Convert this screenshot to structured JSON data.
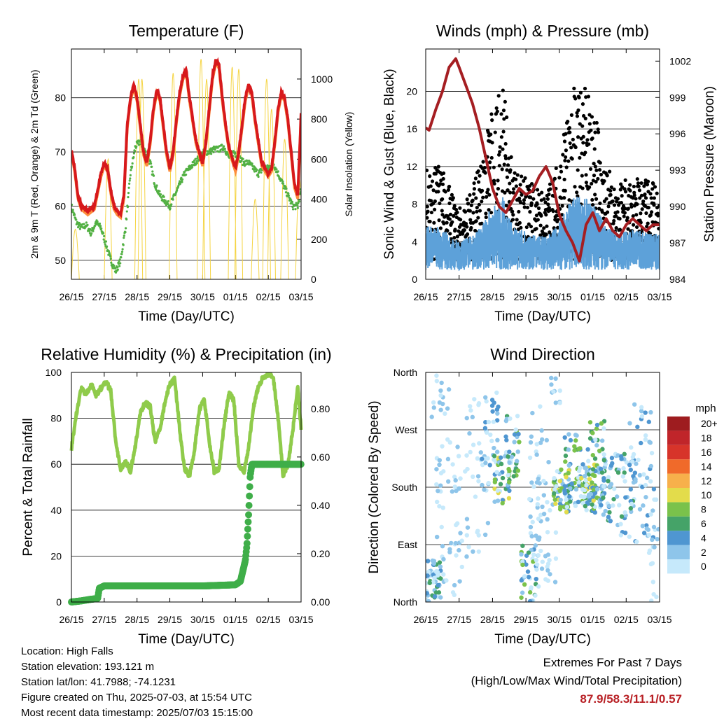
{
  "chart_data": [
    {
      "type": "line",
      "title": "Temperature (F)",
      "xlabel": "Time (Day/UTC)",
      "ylabel": "2m & 9m T (Red, Orange) & 2m Td (Green)",
      "y2label": "Solar Insolation (Yellow)",
      "x_ticks": [
        "26/15",
        "27/15",
        "28/15",
        "29/15",
        "30/15",
        "01/15",
        "02/15",
        "03/15"
      ],
      "ylim": [
        46.5,
        89
      ],
      "y_ticks": [
        50,
        60,
        70,
        80
      ],
      "y2lim": [
        0,
        1150
      ],
      "y2_ticks": [
        0,
        200,
        400,
        600,
        800,
        1000
      ],
      "grid": true,
      "series": [
        {
          "name": "2m T",
          "color": "#d7191c",
          "axis": "left",
          "x": [
            0,
            0.1,
            0.2,
            0.3,
            0.4,
            0.5,
            0.6,
            0.7,
            0.8,
            0.9,
            1.0,
            1.1,
            1.2,
            1.3,
            1.4,
            1.5,
            1.6,
            1.7,
            1.8,
            1.9,
            2.0,
            2.1,
            2.2,
            2.3,
            2.4,
            2.5,
            2.6,
            2.7,
            2.8,
            2.9,
            3.0,
            3.1,
            3.2,
            3.3,
            3.4,
            3.5,
            3.6,
            3.7,
            3.8,
            3.9,
            4.0,
            4.1,
            4.2,
            4.3,
            4.4,
            4.5,
            4.6,
            4.7,
            4.8,
            4.9,
            5.0,
            5.1,
            5.2,
            5.3,
            5.4,
            5.5,
            5.6,
            5.7,
            5.8,
            5.9,
            6.0,
            6.1,
            6.2,
            6.3,
            6.4,
            6.5,
            6.6,
            6.7,
            6.8,
            6.9,
            7.0
          ],
          "values": [
            70.5,
            67,
            62,
            60,
            59.5,
            59,
            59.5,
            60,
            63,
            66,
            68,
            67,
            63,
            60,
            59,
            58.5,
            62,
            75,
            80,
            82.5,
            80,
            75,
            70,
            68,
            72,
            78,
            81.5,
            80,
            75,
            70,
            67,
            70,
            76,
            81,
            84,
            85,
            80,
            76,
            72,
            70,
            68,
            72,
            78,
            84,
            87,
            86,
            80,
            75,
            71,
            69,
            67,
            70,
            75,
            80,
            82.5,
            81,
            76,
            72,
            68,
            67,
            66,
            67,
            72,
            78,
            81,
            80,
            76,
            70,
            64,
            62,
            77
          ]
        },
        {
          "name": "9m T",
          "color": "#fd8d3c",
          "axis": "left",
          "x": [
            0,
            0.3,
            0.6,
            0.9,
            1.2,
            1.5,
            1.8,
            2.1,
            2.4,
            2.7,
            3.0,
            3.3,
            3.6,
            3.9,
            4.2,
            4.5,
            4.8,
            5.1,
            5.4,
            5.7,
            6.0,
            6.3,
            6.6,
            6.9,
            7.0
          ],
          "values": [
            70,
            60.5,
            59.5,
            65,
            63,
            58.5,
            79,
            74,
            71,
            79,
            67,
            80,
            79,
            68,
            83,
            78,
            68,
            74,
            81,
            71,
            66,
            77,
            74,
            62,
            76
          ]
        },
        {
          "name": "2m Td",
          "color": "#52b043",
          "axis": "left",
          "x": [
            0,
            0.15,
            0.3,
            0.45,
            0.6,
            0.75,
            0.9,
            1.05,
            1.2,
            1.35,
            1.5,
            1.65,
            1.8,
            1.95,
            2.1,
            2.25,
            2.4,
            2.55,
            2.7,
            2.85,
            3.0,
            3.15,
            3.3,
            3.45,
            3.6,
            3.75,
            3.9,
            4.05,
            4.2,
            4.35,
            4.5,
            4.65,
            4.8,
            4.95,
            5.1,
            5.25,
            5.4,
            5.55,
            5.7,
            5.85,
            6.0,
            6.15,
            6.3,
            6.45,
            6.6,
            6.75,
            6.9,
            7.0
          ],
          "values": [
            60,
            57,
            56,
            56.5,
            55,
            57,
            56,
            53,
            50,
            48,
            50,
            56,
            66,
            71,
            72,
            70,
            68,
            64,
            62,
            61,
            60,
            62,
            64,
            66,
            67,
            68,
            69,
            70,
            70,
            70.5,
            70.5,
            71,
            69,
            70,
            69,
            68,
            68,
            67,
            66,
            67,
            67,
            68,
            66,
            64,
            62,
            60,
            60,
            63
          ]
        },
        {
          "name": "Solar Insolation",
          "color": "#f5d442",
          "axis": "right",
          "peaks_x": [
            0.12,
            1.12,
            2.05,
            2.15,
            3.1,
            3.95,
            4.12,
            4.9,
            5.1,
            5.6,
            5.95,
            6.1,
            6.5,
            6.95
          ],
          "peaks": [
            250,
            600,
            1000,
            1000,
            1030,
            1100,
            1000,
            1060,
            1050,
            400,
            1000,
            850,
            700,
            500
          ]
        }
      ]
    },
    {
      "type": "scatter",
      "title": "Winds (mph) & Pressure (mb)",
      "xlabel": "Time (Day/UTC)",
      "ylabel": "Sonic Wind & Gust (Blue, Black)",
      "y2label": "Station Pressure (Maroon)",
      "x_ticks": [
        "26/15",
        "27/15",
        "28/15",
        "29/15",
        "30/15",
        "01/15",
        "02/15",
        "03/15"
      ],
      "ylim": [
        0,
        24.5
      ],
      "y_ticks": [
        0,
        4,
        8,
        12,
        16,
        20
      ],
      "y2lim": [
        984,
        1003
      ],
      "y2_ticks": [
        984,
        987,
        990,
        993,
        996,
        999,
        1002
      ],
      "grid": true,
      "series": [
        {
          "name": "Station Pressure",
          "color": "#a51e22",
          "axis": "right",
          "x": [
            0,
            0.1,
            0.3,
            0.5,
            0.7,
            0.9,
            1.0,
            1.2,
            1.4,
            1.6,
            1.8,
            2.0,
            2.2,
            2.4,
            2.6,
            2.8,
            3.0,
            3.2,
            3.4,
            3.6,
            3.8,
            4.0,
            4.2,
            4.4,
            4.6,
            4.8,
            5.0,
            5.2,
            5.4,
            5.6,
            5.8,
            6.0,
            6.2,
            6.4,
            6.6,
            6.8,
            7.0
          ],
          "values": [
            996.5,
            996.3,
            998,
            999.5,
            1001.5,
            1002.2,
            1001.5,
            1000,
            998.5,
            996.5,
            994,
            991.5,
            990,
            989.5,
            990.5,
            991.5,
            991,
            991.3,
            992.5,
            993.3,
            992,
            989.3,
            988,
            987,
            985.5,
            988.5,
            989.5,
            988,
            989,
            988,
            987.5,
            988.5,
            989,
            988.5,
            988,
            988.5,
            988.5
          ]
        },
        {
          "name": "Sonic Wind",
          "color": "#5da1d9",
          "axis": "left",
          "base": 2.5,
          "peak": 9
        },
        {
          "name": "Gust",
          "color": "#000000",
          "axis": "left",
          "base": 5,
          "peak": 21.5
        }
      ]
    },
    {
      "type": "line",
      "title": "Relative Humidity (%) & Precipitation (in)",
      "xlabel": "Time (Day/UTC)",
      "ylabel": "Percent & Total Rainfall",
      "x_ticks": [
        "26/15",
        "27/15",
        "28/15",
        "29/15",
        "30/15",
        "01/15",
        "02/15",
        "03/15"
      ],
      "ylim": [
        0,
        100
      ],
      "y_ticks": [
        0,
        20,
        40,
        60,
        80,
        100
      ],
      "y2lim": [
        0,
        0.95
      ],
      "y2_ticks": [
        "0.00",
        "0.20",
        "0.40",
        "0.60",
        "0.80"
      ],
      "grid": true,
      "series": [
        {
          "name": "Relative Humidity",
          "color": "#8fcb4b",
          "axis": "left",
          "x": [
            0,
            0.15,
            0.3,
            0.45,
            0.6,
            0.75,
            0.9,
            1.05,
            1.2,
            1.35,
            1.5,
            1.65,
            1.8,
            1.95,
            2.1,
            2.25,
            2.4,
            2.55,
            2.7,
            2.85,
            3.0,
            3.15,
            3.3,
            3.45,
            3.6,
            3.75,
            3.9,
            4.05,
            4.2,
            4.35,
            4.5,
            4.65,
            4.8,
            4.95,
            5.1,
            5.25,
            5.4,
            5.55,
            5.7,
            5.85,
            6.0,
            6.15,
            6.3,
            6.45,
            6.6,
            6.75,
            6.9,
            7.0
          ],
          "values": [
            67,
            82,
            93,
            90,
            95,
            90,
            93,
            96,
            92,
            70,
            58,
            61,
            57,
            68,
            82,
            87,
            85,
            70,
            75,
            87,
            95,
            97,
            75,
            58,
            55,
            66,
            84,
            88,
            70,
            57,
            58,
            77,
            91,
            88,
            60,
            56,
            67,
            85,
            94,
            98,
            99,
            98,
            80,
            55,
            60,
            75,
            94,
            75
          ]
        },
        {
          "name": "Total Precipitation",
          "color": "#3fae49",
          "axis": "left",
          "x": [
            0,
            0.3,
            0.6,
            0.8,
            0.85,
            1.0,
            2.0,
            3.0,
            4.0,
            5.0,
            5.15,
            5.3,
            5.35,
            5.4,
            5.45,
            5.5,
            5.55,
            5.6,
            6.0,
            7.0
          ],
          "values": [
            0,
            0.5,
            1.2,
            1.5,
            6,
            7,
            7,
            7,
            7,
            7.5,
            9,
            18,
            25,
            38,
            55,
            60,
            60,
            60,
            60,
            60
          ]
        }
      ]
    },
    {
      "type": "scatter",
      "title": "Wind Direction",
      "xlabel": "Time (Day/UTC)",
      "ylabel": "Direction (Colored By Speed)",
      "x_ticks": [
        "26/15",
        "27/15",
        "28/15",
        "29/15",
        "30/15",
        "01/15",
        "02/15",
        "03/15"
      ],
      "y_ticks": [
        "North",
        "East",
        "South",
        "West",
        "North"
      ],
      "grid": true,
      "legend": {
        "title": "mph",
        "labels": [
          "0",
          "2",
          "4",
          "6",
          "8",
          "10",
          "12",
          "14",
          "16",
          "18",
          "20+"
        ],
        "colors": [
          "#c6e9fb",
          "#8ec5ea",
          "#4f96d1",
          "#45a368",
          "#7ac24b",
          "#e3dc4b",
          "#f7b04b",
          "#f06a2a",
          "#d7342a",
          "#c0252a",
          "#9e1c1f"
        ]
      }
    }
  ],
  "footer": {
    "location": "Location: High Falls",
    "elevation": "Station elevation: 193.121 m",
    "latlon": "Station lat/lon: 41.7988; -74.1231",
    "created": "Figure created on Thu, 2025-07-03, at 15:54 UTC",
    "timestamp": "Most recent data timestamp: 2025/07/03 15:15:00"
  },
  "extremes": {
    "title": "Extremes For Past 7 Days",
    "subtitle": "(High/Low/Max Wind/Total Precipitation)",
    "values": "87.9/58.3/11.1/0.57"
  }
}
